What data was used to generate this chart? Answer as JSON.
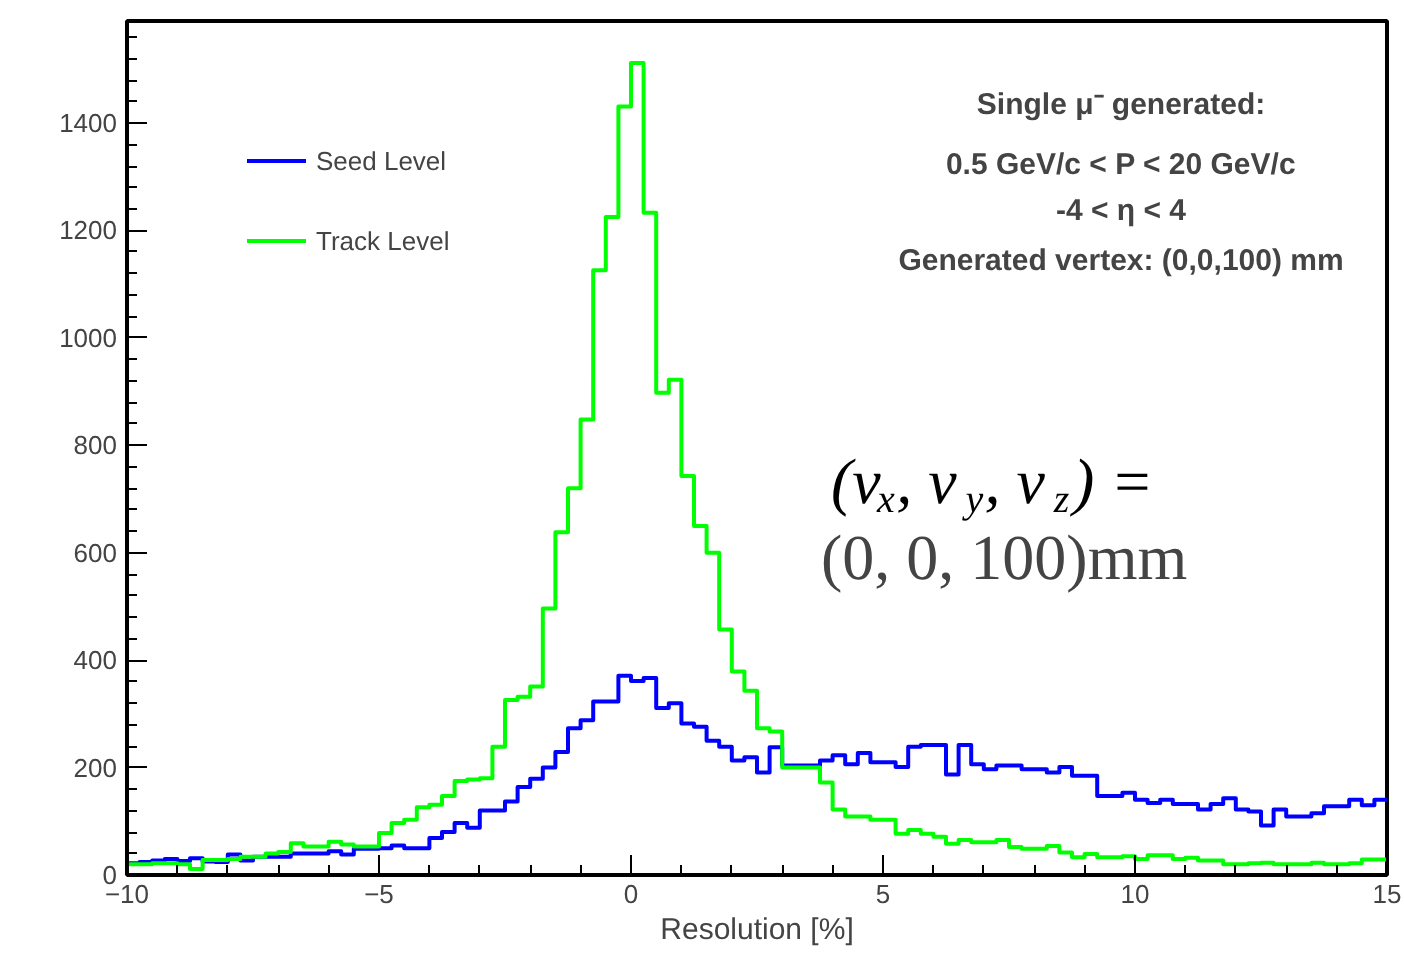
{
  "chart_data": {
    "type": "histogram",
    "xlabel": "Resolution [%]",
    "bins": [
      -10,
      -9.75,
      -9.5,
      -9.25,
      -9,
      -8.75,
      -8.5,
      -8.25,
      -8,
      -7.75,
      -7.5,
      -7.25,
      -7,
      -6.75,
      -6.5,
      -6.25,
      -6,
      -5.75,
      -5.5,
      -5.25,
      -5,
      -4.75,
      -4.5,
      -4.25,
      -4,
      -3.75,
      -3.5,
      -3.25,
      -3,
      -2.75,
      -2.5,
      -2.25,
      -2,
      -1.75,
      -1.5,
      -1.25,
      -1,
      -0.75,
      -0.5,
      -0.25,
      0,
      0.25,
      0.5,
      0.75,
      1,
      1.25,
      1.5,
      1.75,
      2,
      2.25,
      2.5,
      2.75,
      3,
      3.25,
      3.5,
      3.75,
      4,
      4.25,
      4.5,
      4.75,
      5,
      5.25,
      5.5,
      5.75,
      6,
      6.25,
      6.5,
      6.75,
      7,
      7.25,
      7.5,
      7.75,
      8,
      8.25,
      8.5,
      8.75,
      9,
      9.25,
      9.5,
      9.75,
      10,
      10.25,
      10.5,
      10.75,
      11,
      11.25,
      11.5,
      11.75,
      12,
      12.25,
      12.5,
      12.75,
      13,
      13.25,
      13.5,
      13.75,
      14,
      14.25,
      14.5,
      14.75,
      15
    ],
    "series": [
      {
        "name": "Seed Level",
        "color": "#0000ff",
        "values": [
          22,
          24,
          27,
          30,
          26,
          31,
          25,
          24,
          38,
          27,
          34,
          34,
          34,
          40,
          40,
          40,
          44,
          38,
          49,
          49,
          50,
          55,
          50,
          50,
          69,
          80,
          97,
          88,
          120,
          120,
          137,
          164,
          179,
          200,
          229,
          273,
          288,
          323,
          323,
          371,
          361,
          367,
          311,
          320,
          282,
          276,
          250,
          239,
          213,
          219,
          191,
          238,
          204,
          204,
          204,
          213,
          223,
          206,
          227,
          210,
          210,
          201,
          239,
          242,
          242,
          187,
          242,
          206,
          197,
          204,
          204,
          197,
          197,
          191,
          201,
          185,
          185,
          147,
          147,
          153,
          140,
          134,
          140,
          132,
          132,
          122,
          132,
          143,
          122,
          118,
          92,
          122,
          109,
          109,
          115,
          128,
          128,
          140,
          130,
          140
        ]
      },
      {
        "name": "Track Level",
        "color": "#00ff00",
        "values": [
          20,
          20,
          22,
          22,
          20,
          11,
          28,
          28,
          30,
          34,
          34,
          40,
          43,
          59,
          53,
          53,
          62,
          57,
          53,
          53,
          78,
          97,
          103,
          126,
          131,
          147,
          175,
          178,
          180,
          239,
          326,
          332,
          351,
          496,
          638,
          720,
          848,
          1126,
          1225,
          1431,
          1512,
          1233,
          898,
          922,
          743,
          650,
          600,
          457,
          379,
          343,
          273,
          267,
          200,
          200,
          200,
          172,
          122,
          109,
          109,
          103,
          103,
          77,
          84,
          77,
          71,
          58,
          65,
          61,
          61,
          65,
          52,
          49,
          49,
          54,
          42,
          33,
          39,
          33,
          33,
          35,
          30,
          37,
          37,
          30,
          32,
          27,
          27,
          20,
          20,
          22,
          23,
          20,
          20,
          20,
          23,
          20,
          20,
          22,
          29,
          29
        ]
      }
    ],
    "xlim": [
      -10,
      15
    ],
    "xticks": [
      {
        "value": -10,
        "label": "−10"
      },
      {
        "value": -5,
        "label": "−5"
      },
      0,
      5,
      10,
      15
    ],
    "ylim": [
      0,
      1590
    ],
    "yticks": [
      0,
      200,
      400,
      600,
      800,
      1000,
      1200,
      1400
    ],
    "legend": "top left",
    "grid": false,
    "annotations": [
      "Single μ⁻ generated:",
      "0.5 GeV/c < P < 20 GeV/c",
      "-4 < η < 4",
      "Generated vertex: (0,0,100) mm",
      "(v$_{x}$, v$_{y}$, v$_{z}$) =",
      "(0, 0, 100)mm"
    ]
  }
}
